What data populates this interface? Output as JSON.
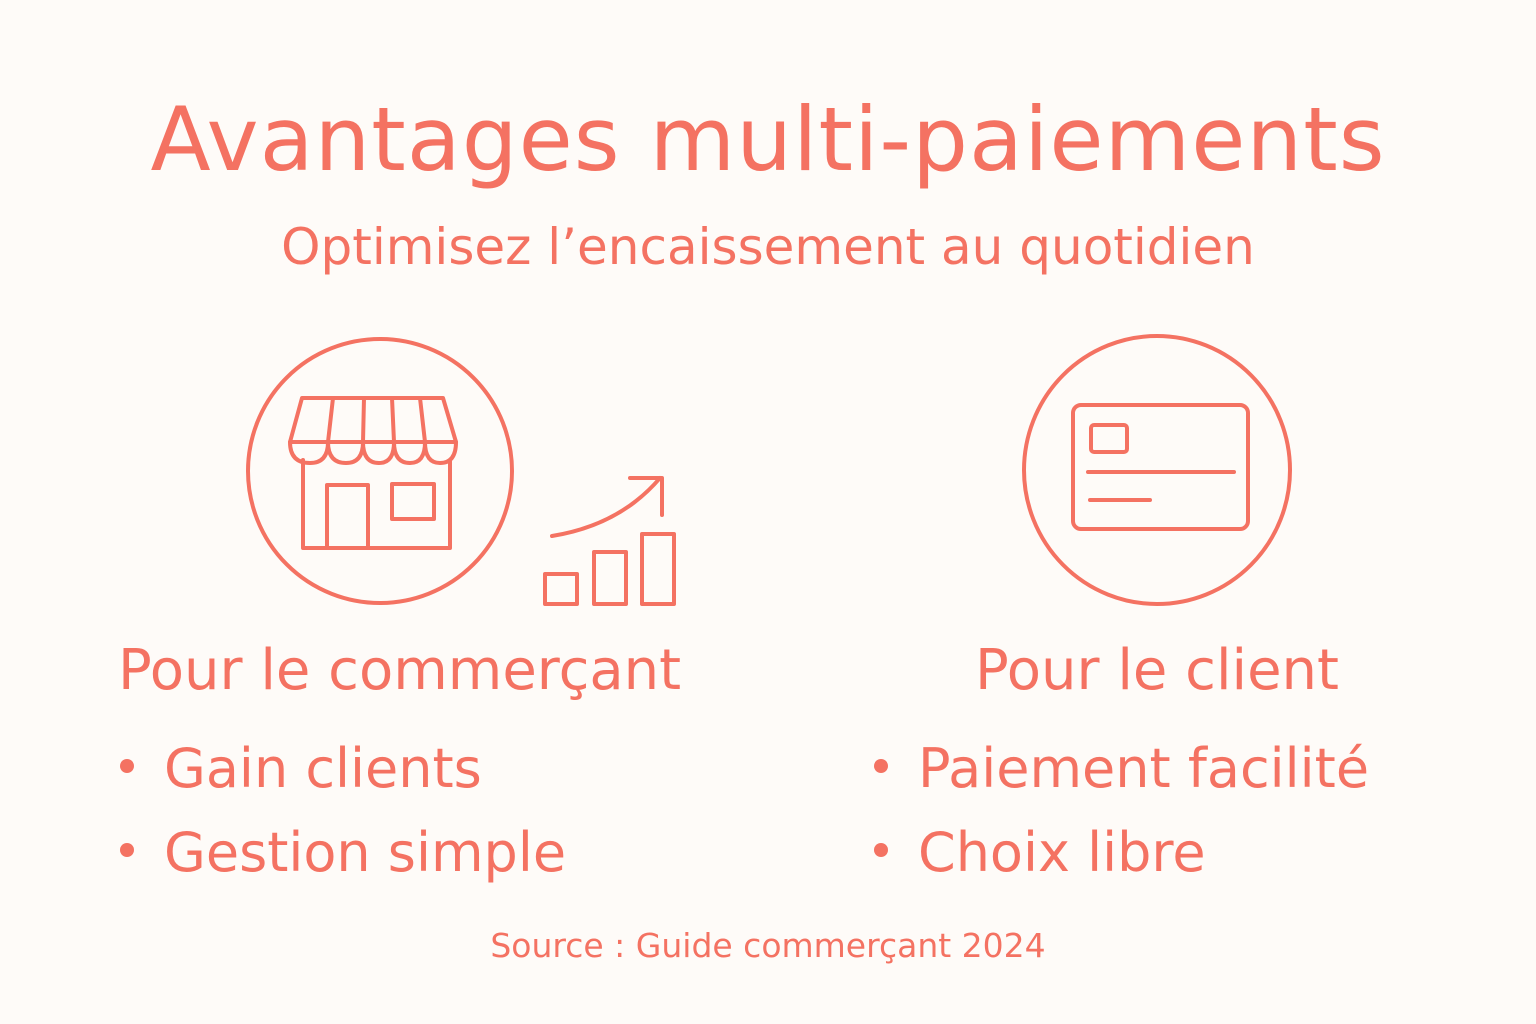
{
  "title": "Avantages multi-paiements",
  "subtitle": "Optimisez l’encaissement au quotidien",
  "merchant": {
    "icon": "storefront-icon",
    "secondary_icon": "growth-bar-chart-icon",
    "heading": "Pour le commerçant",
    "items": [
      "Gain clients",
      "Gestion simple"
    ]
  },
  "client": {
    "icon": "credit-card-icon",
    "heading": "Pour le client",
    "items": [
      "Paiement facilité",
      "Choix libre"
    ]
  },
  "source": "Source : Guide commerçant 2024",
  "colors": {
    "accent": "#f47262",
    "background": "#fefbf8"
  }
}
